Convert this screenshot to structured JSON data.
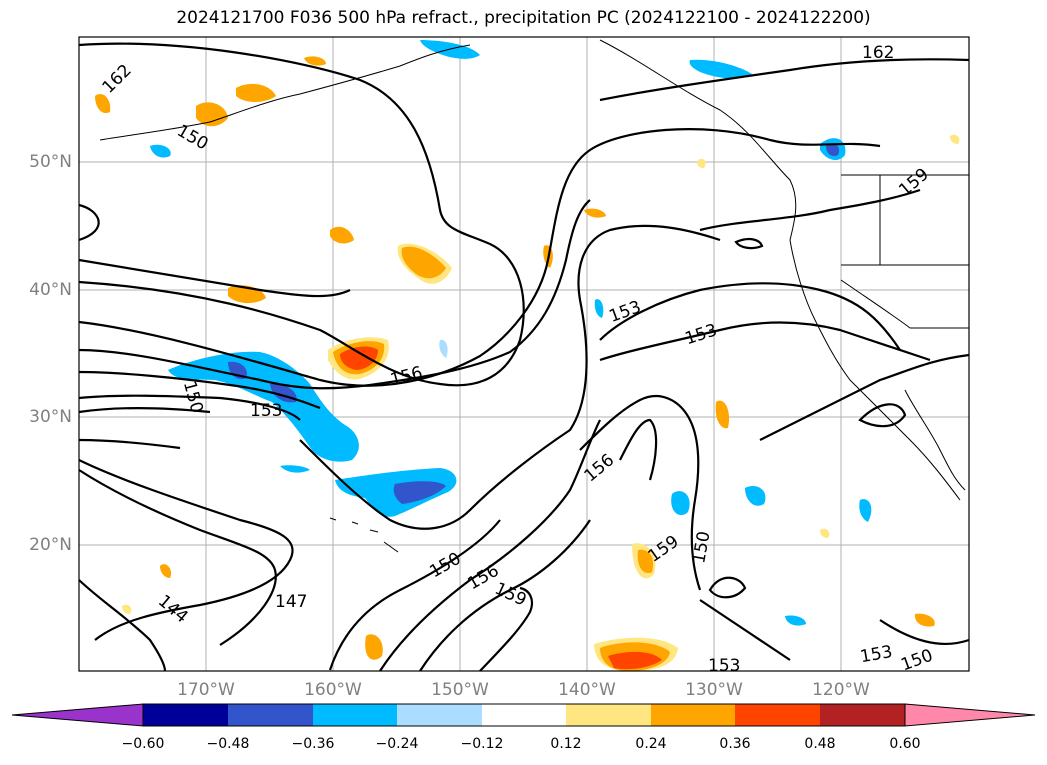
{
  "title": "2024121700 F036 500 hPa refract., precipitation PC (2024122100 - 2024122200)",
  "lat_labels": [
    "50°N",
    "40°N",
    "30°N",
    "20°N"
  ],
  "lon_labels": [
    "170°W",
    "160°W",
    "150°W",
    "140°W",
    "130°W",
    "120°W"
  ],
  "contour_labels": [
    "162",
    "162",
    "159",
    "156",
    "153",
    "153",
    "150",
    "153",
    "156",
    "150",
    "150",
    "147",
    "144",
    "156",
    "159",
    "159",
    "150",
    "153",
    "153",
    "150"
  ],
  "colorbar": {
    "ticks": [
      "−0.60",
      "−0.48",
      "−0.36",
      "−0.24",
      "−0.12",
      "0.12",
      "0.24",
      "0.36",
      "0.48",
      "0.60"
    ],
    "colors": [
      "#9933cc",
      "#000099",
      "#3355cc",
      "#00bbff",
      "#aaddff",
      "#ffffff",
      "#ffe680",
      "#ffa500",
      "#ff4400",
      "#b22222",
      "#ff88aa"
    ]
  },
  "map_colors": {
    "coast": "#000000",
    "grid": "#b0b0b0",
    "contour": "#000000"
  }
}
